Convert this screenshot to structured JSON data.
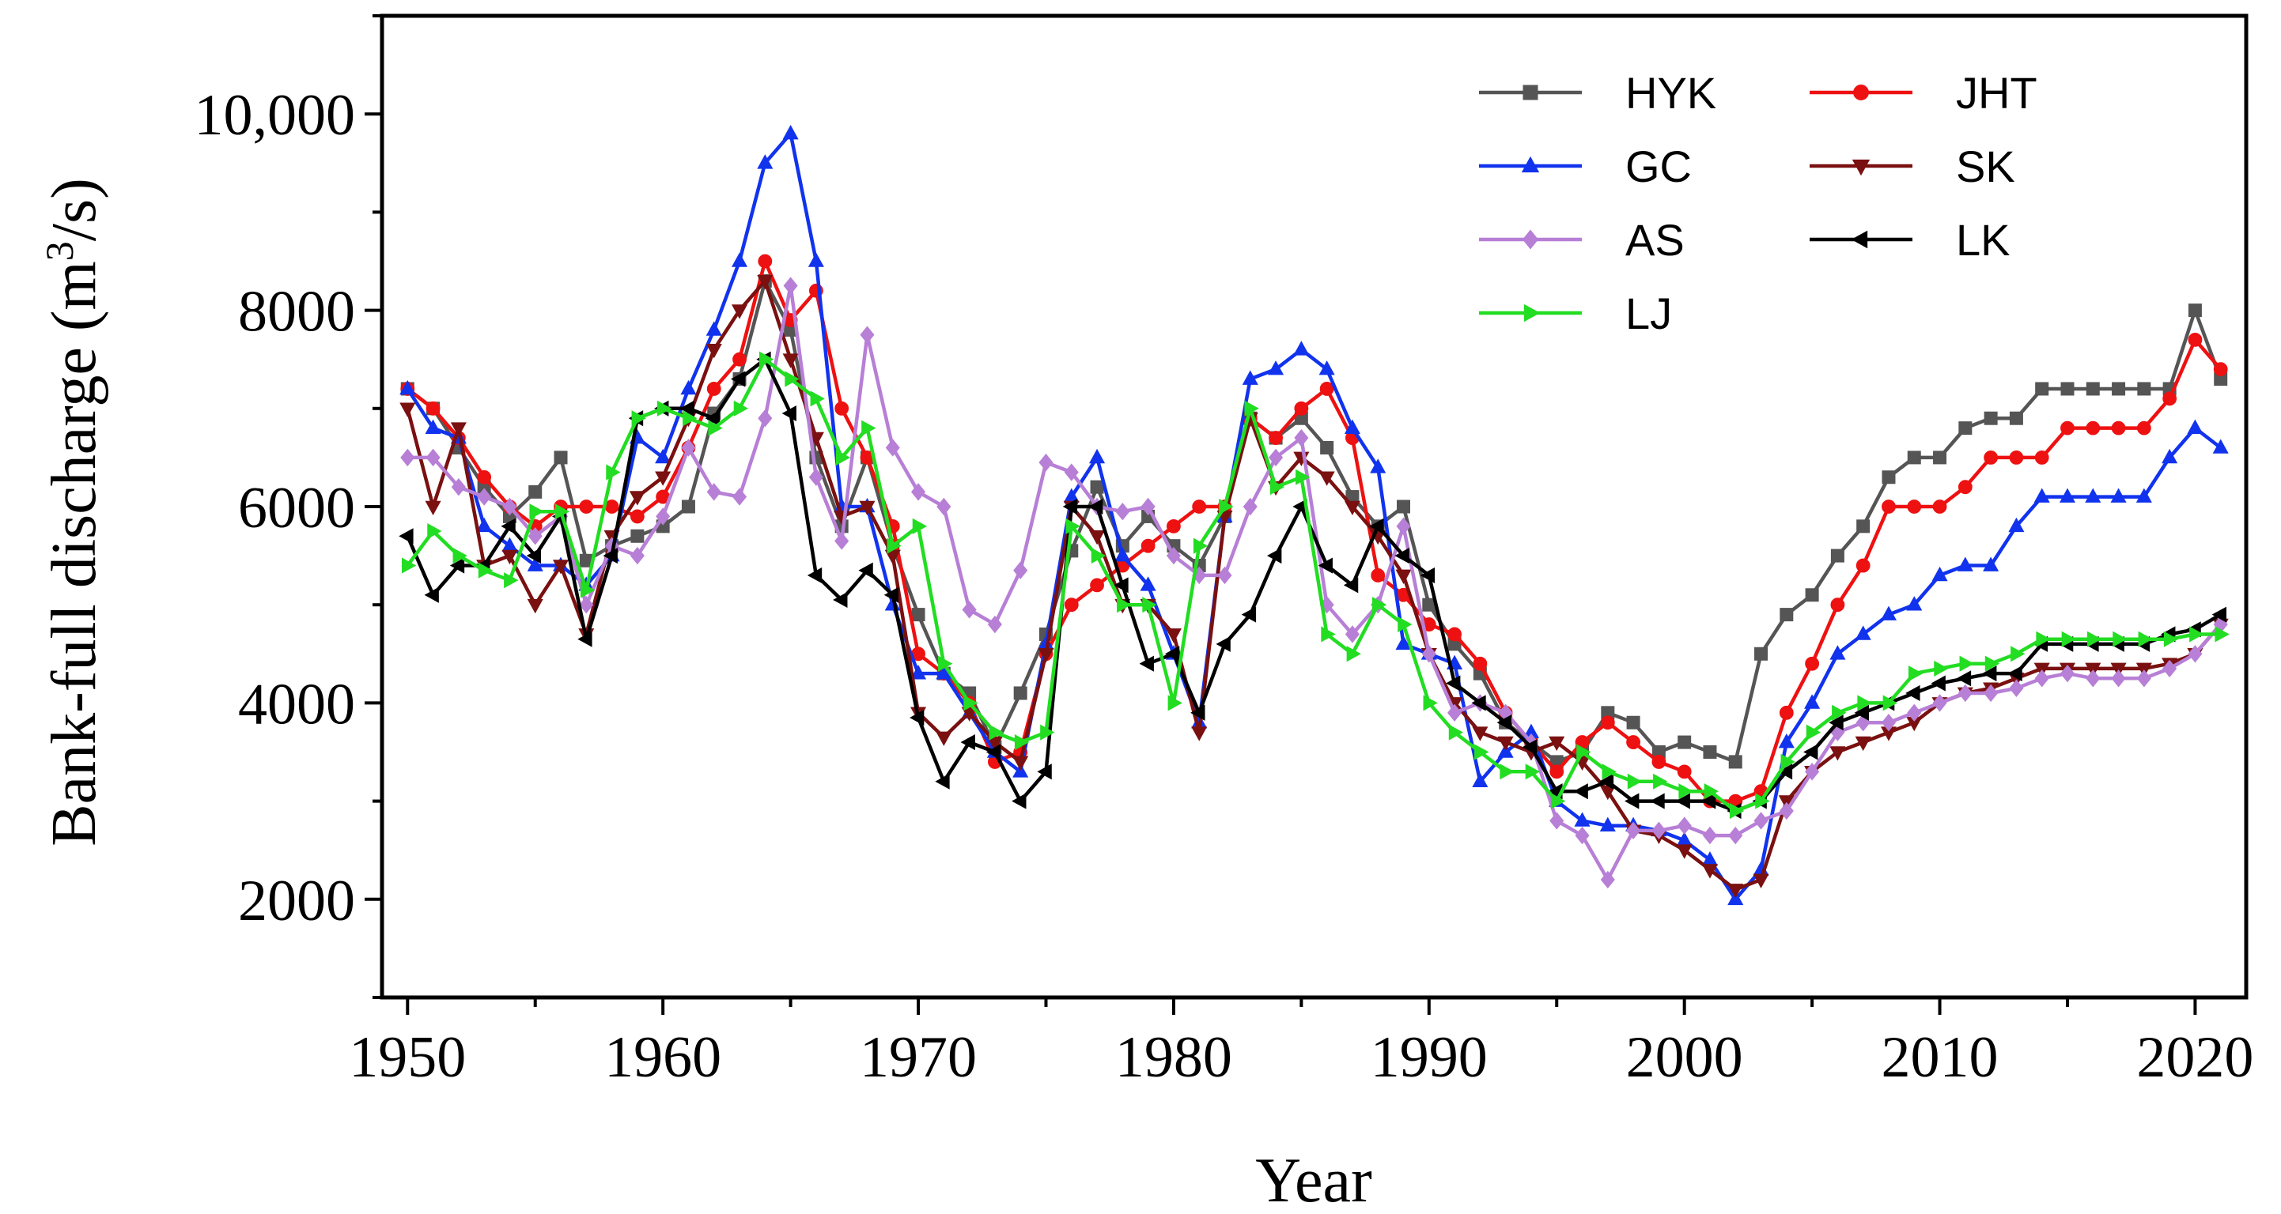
{
  "chart_data": {
    "type": "line",
    "xlabel": "Year",
    "ylabel": "Bank-full discharge (m",
    "ylabel_sup": "3",
    "ylabel_suffix": "/s)",
    "xlim": [
      1949,
      2022
    ],
    "ylim": [
      1000,
      11000
    ],
    "xticks": [
      1950,
      1960,
      1970,
      1980,
      1990,
      2000,
      2010,
      2020
    ],
    "xtick_labels": [
      "1950",
      "1960",
      "1970",
      "1980",
      "1990",
      "2000",
      "2010",
      "2020"
    ],
    "yticks": [
      2000,
      4000,
      6000,
      8000,
      10000
    ],
    "ytick_labels": [
      "2000",
      "4000",
      "6000",
      "8000",
      "10,000"
    ],
    "x": [
      1950,
      1951,
      1952,
      1953,
      1954,
      1955,
      1956,
      1957,
      1958,
      1959,
      1960,
      1961,
      1962,
      1963,
      1964,
      1965,
      1966,
      1967,
      1968,
      1969,
      1970,
      1971,
      1972,
      1973,
      1974,
      1975,
      1976,
      1977,
      1978,
      1979,
      1980,
      1981,
      1982,
      1983,
      1984,
      1985,
      1986,
      1987,
      1988,
      1989,
      1990,
      1991,
      1992,
      1993,
      1994,
      1995,
      1996,
      1997,
      1998,
      1999,
      2000,
      2001,
      2002,
      2003,
      2004,
      2005,
      2006,
      2007,
      2008,
      2009,
      2010,
      2011,
      2012,
      2013,
      2014,
      2015,
      2016,
      2017,
      2018,
      2019,
      2020,
      2021
    ],
    "legend": {
      "position": "top-right",
      "columns": 2
    },
    "series": [
      {
        "name": "HYK",
        "color": "#555555",
        "marker": "square",
        "values": [
          7200,
          7000,
          6600,
          6200,
          5900,
          6150,
          6500,
          5450,
          5600,
          5700,
          5800,
          6000,
          6950,
          7300,
          8300,
          7800,
          6500,
          5800,
          6500,
          5600,
          4900,
          4300,
          4100,
          3550,
          4100,
          4700,
          5550,
          6200,
          5600,
          5900,
          5600,
          5400,
          5900,
          6900,
          6700,
          6900,
          6600,
          6100,
          5800,
          6000,
          5000,
          4600,
          4300,
          3800,
          3600,
          3400,
          3500,
          3900,
          3800,
          3500,
          3600,
          3500,
          3400,
          4500,
          4900,
          5100,
          5500,
          5800,
          6300,
          6500,
          6500,
          6800,
          6900,
          6900,
          7200,
          7200,
          7200,
          7200,
          7200,
          7200,
          8000,
          7300
        ]
      },
      {
        "name": "JHT",
        "color": "#ee1111",
        "marker": "circle",
        "values": [
          7200,
          7000,
          6700,
          6300,
          6000,
          5800,
          6000,
          6000,
          6000,
          5900,
          6100,
          6600,
          7200,
          7500,
          8500,
          7900,
          8200,
          7000,
          6500,
          5800,
          4500,
          4300,
          4000,
          3400,
          3500,
          4500,
          5000,
          5200,
          5400,
          5600,
          5800,
          6000,
          6000,
          6900,
          6700,
          7000,
          7200,
          6700,
          5300,
          5100,
          4800,
          4700,
          4400,
          3900,
          3600,
          3300,
          3600,
          3800,
          3600,
          3400,
          3300,
          3000,
          3000,
          3100,
          3900,
          4400,
          5000,
          5400,
          6000,
          6000,
          6000,
          6200,
          6500,
          6500,
          6500,
          6800,
          6800,
          6800,
          6800,
          7100,
          7700,
          7400
        ]
      },
      {
        "name": "GC",
        "color": "#1133ee",
        "marker": "triangle-up",
        "values": [
          7200,
          6800,
          6700,
          5800,
          5600,
          5400,
          5400,
          5200,
          5500,
          6700,
          6500,
          7200,
          7800,
          8500,
          9500,
          9800,
          8500,
          6000,
          6000,
          5000,
          4300,
          4300,
          3900,
          3500,
          3300,
          4600,
          6100,
          6500,
          5500,
          5200,
          4500,
          3800,
          5900,
          7300,
          7400,
          7600,
          7400,
          6800,
          6400,
          4600,
          4500,
          4400,
          3200,
          3500,
          3700,
          3000,
          2800,
          2750,
          2750,
          2700,
          2600,
          2400,
          2000,
          2300,
          3600,
          4000,
          4500,
          4700,
          4900,
          5000,
          5300,
          5400,
          5400,
          5800,
          6100,
          6100,
          6100,
          6100,
          6100,
          6500,
          6800,
          6600
        ]
      },
      {
        "name": "SK",
        "color": "#7a1010",
        "marker": "triangle-down",
        "values": [
          7000,
          6000,
          6800,
          5400,
          5500,
          5000,
          5400,
          4700,
          5700,
          6100,
          6300,
          6900,
          7600,
          8000,
          8300,
          7500,
          6700,
          5900,
          6000,
          5500,
          3900,
          3650,
          3900,
          3600,
          3400,
          4500,
          6000,
          5700,
          5000,
          5000,
          4700,
          3700,
          5900,
          6900,
          6200,
          6500,
          6300,
          6000,
          5700,
          5300,
          4500,
          4000,
          3700,
          3600,
          3500,
          3600,
          3400,
          3100,
          2700,
          2650,
          2500,
          2300,
          2100,
          2200,
          3000,
          3300,
          3500,
          3600,
          3700,
          3800,
          4000,
          4100,
          4150,
          4250,
          4350,
          4350,
          4350,
          4350,
          4350,
          4400,
          4500,
          4800
        ]
      },
      {
        "name": "AS",
        "color": "#b77fd6",
        "marker": "diamond",
        "values": [
          6500,
          6500,
          6200,
          6100,
          6000,
          5700,
          5900,
          5000,
          5600,
          5500,
          5900,
          6600,
          6150,
          6100,
          6900,
          8250,
          6300,
          5650,
          7750,
          6600,
          6150,
          6000,
          4950,
          4800,
          5350,
          6450,
          6350,
          6000,
          5950,
          6000,
          5500,
          5300,
          5300,
          6000,
          6500,
          6700,
          5000,
          4700,
          5000,
          5800,
          4500,
          3900,
          4000,
          3900,
          3600,
          2800,
          2650,
          2200,
          2700,
          2700,
          2750,
          2650,
          2650,
          2800,
          2900,
          3300,
          3700,
          3800,
          3800,
          3900,
          4000,
          4100,
          4100,
          4150,
          4250,
          4300,
          4250,
          4250,
          4250,
          4350,
          4500,
          4800
        ]
      },
      {
        "name": "LK",
        "color": "#000000",
        "marker": "triangle-left",
        "values": [
          5700,
          5100,
          5400,
          5400,
          5800,
          5500,
          5900,
          4650,
          5500,
          6900,
          7000,
          7000,
          6900,
          7300,
          7500,
          6950,
          5300,
          5050,
          5350,
          5100,
          3850,
          3200,
          3600,
          3500,
          3000,
          3300,
          6000,
          6000,
          5200,
          4400,
          4500,
          3900,
          4600,
          4900,
          5500,
          6000,
          5400,
          5200,
          5800,
          5500,
          5300,
          4200,
          4000,
          3800,
          3550,
          3100,
          3100,
          3200,
          3000,
          3000,
          3000,
          3000,
          2900,
          3000,
          3300,
          3500,
          3800,
          3900,
          4000,
          4100,
          4200,
          4250,
          4300,
          4300,
          4600,
          4600,
          4600,
          4600,
          4600,
          4700,
          4750,
          4900
        ]
      },
      {
        "name": "LJ",
        "color": "#22dd22",
        "marker": "triangle-right",
        "values": [
          5400,
          5750,
          5500,
          5350,
          5250,
          5950,
          5950,
          5150,
          6350,
          6900,
          7000,
          6900,
          6800,
          7000,
          7500,
          7300,
          7100,
          6500,
          6800,
          5600,
          5800,
          4400,
          4000,
          3700,
          3600,
          3700,
          5800,
          5500,
          5000,
          5000,
          4000,
          5600,
          6000,
          7000,
          6200,
          6300,
          4700,
          4500,
          5000,
          4800,
          4000,
          3700,
          3500,
          3300,
          3300,
          3000,
          3500,
          3300,
          3200,
          3200,
          3100,
          3100,
          2900,
          3000,
          3400,
          3700,
          3900,
          4000,
          4000,
          4300,
          4350,
          4400,
          4400,
          4500,
          4650,
          4650,
          4650,
          4650,
          4650,
          4650,
          4700,
          4700
        ]
      }
    ]
  }
}
